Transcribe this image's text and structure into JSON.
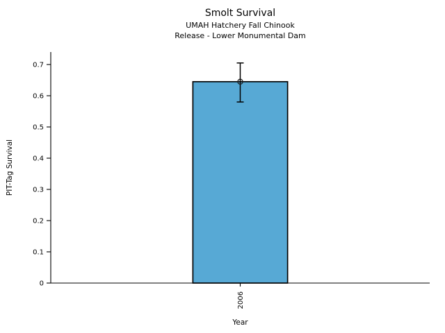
{
  "chart_data": {
    "type": "bar",
    "title": "Smolt Survival",
    "subtitle_lines": [
      "UMAH Hatchery Fall Chinook",
      "Release - Lower Monumental Dam"
    ],
    "categories": [
      "2006"
    ],
    "values": [
      0.645
    ],
    "error_low": [
      0.58
    ],
    "error_high": [
      0.705
    ],
    "xlabel": "Year",
    "ylabel": "PIT-Tag Survival",
    "ylim": [
      0,
      0.74
    ],
    "yticks": [
      0,
      0.1,
      0.2,
      0.3,
      0.4,
      0.5,
      0.6,
      0.7
    ],
    "ytick_labels": [
      "0",
      "0.1",
      "0.2",
      "0.3",
      "0.4",
      "0.5",
      "0.6",
      "0.7"
    ],
    "xtick_rotation": "vertical",
    "grid": false,
    "legend": null,
    "marker": "open-circle",
    "bar_color": "#57a9d5",
    "bar_edge_color": "#000000",
    "axis_color": "#000000",
    "background": "#ffffff"
  }
}
